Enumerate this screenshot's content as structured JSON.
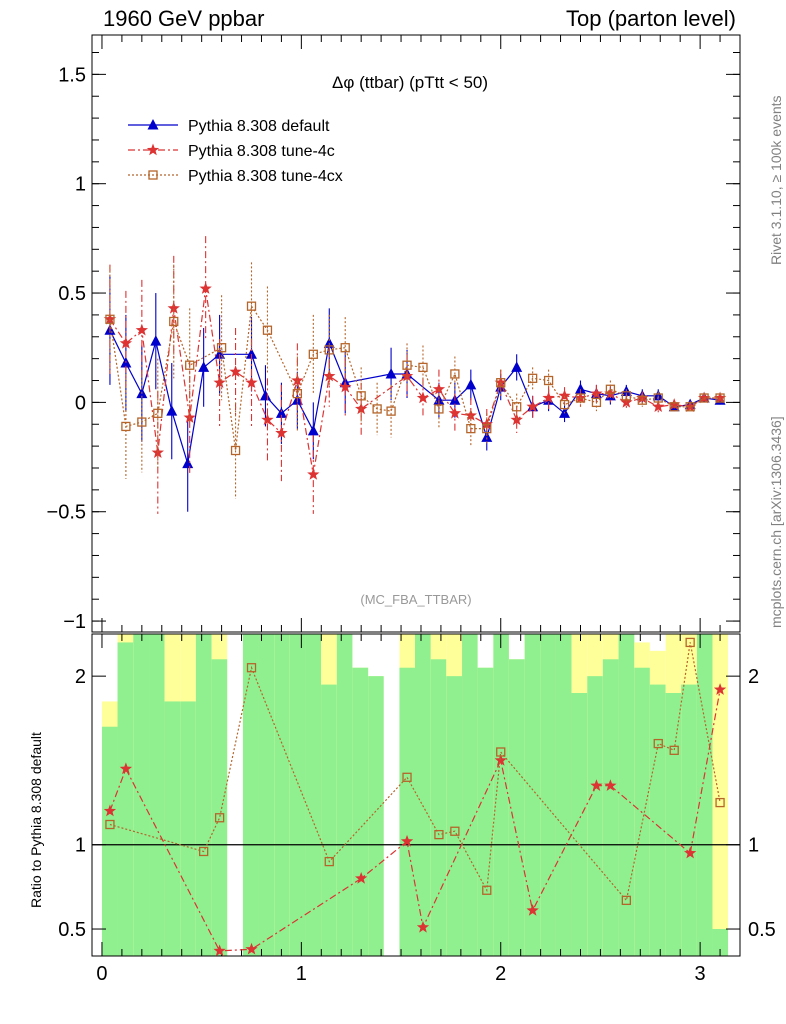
{
  "header": {
    "left": "1960 GeV ppbar",
    "right": "Top (parton level)"
  },
  "side": {
    "rivet": "Rivet 3.1.10, ≥ 100k events",
    "mcplots": "mcplots.cern.ch [arXiv:1306.3436]"
  },
  "chart_data": [
    {
      "type": "line",
      "title": "Δφ (ttbar) (pTtt < 50)",
      "watermark": "(MC_FBA_TTBAR)",
      "xlim": [
        -0.05,
        3.2
      ],
      "ylim": [
        -1.05,
        1.68
      ],
      "xticks": [
        0,
        1,
        2,
        3
      ],
      "yticks": [
        -1,
        -0.5,
        0,
        0.5,
        1,
        1.5
      ],
      "ytick_labels": [
        "−1",
        "−0.5",
        "0",
        "0.5",
        "1",
        "1.5"
      ],
      "legend_position": "top-left",
      "series": [
        {
          "name": "Pythia 8.308 default",
          "color": "#0000cc",
          "marker": "triangle",
          "line": "solid",
          "x": [
            0.04,
            0.12,
            0.2,
            0.27,
            0.35,
            0.43,
            0.51,
            0.59,
            0.75,
            0.82,
            0.9,
            0.98,
            1.06,
            1.14,
            1.22,
            1.45,
            1.53,
            1.69,
            1.77,
            1.85,
            1.93,
            2.0,
            2.08,
            2.16,
            2.24,
            2.32,
            2.4,
            2.48,
            2.55,
            2.63,
            2.71,
            2.79,
            2.87,
            2.95,
            3.02,
            3.1
          ],
          "y": [
            0.33,
            0.18,
            0.04,
            0.28,
            -0.04,
            -0.28,
            0.16,
            0.22,
            0.22,
            0.03,
            -0.05,
            0.01,
            -0.13,
            0.27,
            0.09,
            0.13,
            0.13,
            0.01,
            0.01,
            0.08,
            -0.16,
            0.07,
            0.16,
            -0.02,
            0.01,
            -0.05,
            0.06,
            0.04,
            0.03,
            0.05,
            0.03,
            0.03,
            -0.02,
            -0.01,
            0.02,
            0.01
          ],
          "err": [
            0.25,
            0.22,
            0.22,
            0.22,
            0.22,
            0.22,
            0.18,
            0.18,
            0.17,
            0.14,
            0.14,
            0.13,
            0.13,
            0.16,
            0.14,
            0.12,
            0.11,
            0.08,
            0.08,
            0.07,
            0.06,
            0.06,
            0.06,
            0.05,
            0.05,
            0.04,
            0.04,
            0.04,
            0.04,
            0.03,
            0.03,
            0.03,
            0.02,
            0.02,
            0.02,
            0.02
          ]
        },
        {
          "name": "Pythia 8.308 tune-4c",
          "color": "#dd3333",
          "marker": "star",
          "line": "dashdot",
          "x": [
            0.04,
            0.12,
            0.2,
            0.28,
            0.36,
            0.44,
            0.52,
            0.59,
            0.67,
            0.75,
            0.83,
            0.9,
            0.98,
            1.06,
            1.14,
            1.22,
            1.3,
            1.53,
            1.61,
            1.69,
            1.77,
            1.85,
            1.93,
            2.0,
            2.08,
            2.16,
            2.24,
            2.32,
            2.4,
            2.48,
            2.55,
            2.63,
            2.71,
            2.79,
            2.87,
            2.95,
            3.02,
            3.1
          ],
          "y": [
            0.38,
            0.27,
            0.33,
            -0.23,
            0.43,
            -0.07,
            0.52,
            0.09,
            0.14,
            0.09,
            -0.08,
            -0.14,
            0.1,
            -0.33,
            0.12,
            0.07,
            -0.03,
            0.12,
            0.02,
            0.06,
            -0.05,
            -0.06,
            -0.1,
            0.09,
            -0.08,
            -0.02,
            0.02,
            0.03,
            0.02,
            0.04,
            0.04,
            0.0,
            0.02,
            -0.02,
            -0.01,
            -0.02,
            0.02,
            0.02
          ],
          "err": [
            0.25,
            0.24,
            0.23,
            0.28,
            0.24,
            0.26,
            0.24,
            0.2,
            0.2,
            0.2,
            0.19,
            0.22,
            0.17,
            0.18,
            0.14,
            0.13,
            0.12,
            0.1,
            0.09,
            0.09,
            0.09,
            0.08,
            0.07,
            0.06,
            0.06,
            0.05,
            0.05,
            0.04,
            0.04,
            0.04,
            0.04,
            0.03,
            0.03,
            0.03,
            0.02,
            0.02,
            0.02,
            0.02
          ]
        },
        {
          "name": "Pythia 8.308 tune-4cx",
          "color": "#b5652a",
          "marker": "open-square",
          "line": "dotted",
          "x": [
            0.04,
            0.12,
            0.2,
            0.28,
            0.36,
            0.44,
            0.6,
            0.67,
            0.75,
            0.83,
            0.98,
            1.06,
            1.14,
            1.22,
            1.3,
            1.38,
            1.45,
            1.53,
            1.61,
            1.69,
            1.77,
            1.85,
            1.93,
            2.0,
            2.08,
            2.16,
            2.24,
            2.32,
            2.4,
            2.48,
            2.55,
            2.63,
            2.71,
            2.79,
            2.87,
            2.95,
            3.02,
            3.1
          ],
          "y": [
            0.38,
            -0.11,
            -0.09,
            -0.05,
            0.37,
            0.17,
            0.25,
            -0.22,
            0.44,
            0.33,
            0.04,
            0.22,
            0.24,
            0.25,
            0.03,
            -0.03,
            -0.04,
            0.17,
            0.16,
            -0.03,
            0.13,
            -0.12,
            -0.12,
            0.09,
            -0.02,
            0.11,
            0.1,
            -0.01,
            0.02,
            0.0,
            0.06,
            0.03,
            0.01,
            0.02,
            -0.02,
            -0.02,
            0.02,
            0.02
          ],
          "err": [
            0.24,
            0.24,
            0.23,
            0.25,
            0.26,
            0.26,
            0.24,
            0.22,
            0.2,
            0.2,
            0.17,
            0.18,
            0.16,
            0.14,
            0.13,
            0.12,
            0.12,
            0.1,
            0.1,
            0.09,
            0.08,
            0.08,
            0.07,
            0.06,
            0.06,
            0.05,
            0.05,
            0.04,
            0.04,
            0.04,
            0.04,
            0.03,
            0.03,
            0.03,
            0.02,
            0.02,
            0.02,
            0.02
          ]
        }
      ]
    },
    {
      "type": "line",
      "ylabel": "Ratio to Pythia 8.308 default",
      "xlim": [
        -0.05,
        3.2
      ],
      "ylim": [
        0.34,
        2.25
      ],
      "xticks": [
        0,
        1,
        2,
        3
      ],
      "yticks": [
        0.5,
        1,
        2
      ],
      "ytick_labels": [
        "0.5",
        "1",
        "2"
      ],
      "reference_line": 1,
      "band_colors": {
        "inner": "#90f090",
        "outer": "#ffff99"
      },
      "bands": [
        {
          "x0": 0.0,
          "x1": 0.078,
          "inner": 1.7,
          "outer": 1.85
        },
        {
          "x0": 0.078,
          "x1": 0.157,
          "inner": 2.2,
          "outer": 2.25
        },
        {
          "x0": 0.157,
          "x1": 0.236,
          "inner": 2.25,
          "outer": 2.25
        },
        {
          "x0": 0.236,
          "x1": 0.314,
          "inner": 2.25,
          "outer": 2.25
        },
        {
          "x0": 0.314,
          "x1": 0.393,
          "inner": 1.85,
          "outer": 2.25
        },
        {
          "x0": 0.393,
          "x1": 0.471,
          "inner": 1.85,
          "outer": 2.25
        },
        {
          "x0": 0.471,
          "x1": 0.55,
          "inner": 2.25,
          "outer": 2.25
        },
        {
          "x0": 0.55,
          "x1": 0.628,
          "inner": 2.1,
          "outer": 2.25
        },
        {
          "x0": 0.707,
          "x1": 0.785,
          "inner": 2.25,
          "outer": 2.25
        },
        {
          "x0": 0.785,
          "x1": 0.864,
          "inner": 2.25,
          "outer": 2.25
        },
        {
          "x0": 0.864,
          "x1": 0.942,
          "inner": 2.25,
          "outer": 2.25
        },
        {
          "x0": 0.942,
          "x1": 1.021,
          "inner": 2.25,
          "outer": 2.25
        },
        {
          "x0": 1.021,
          "x1": 1.099,
          "inner": 2.25,
          "outer": 2.25
        },
        {
          "x0": 1.099,
          "x1": 1.178,
          "inner": 1.95,
          "outer": 2.25
        },
        {
          "x0": 1.178,
          "x1": 1.256,
          "inner": 2.25,
          "outer": 2.25
        },
        {
          "x0": 1.256,
          "x1": 1.335,
          "inner": 2.05,
          "outer": 2.05
        },
        {
          "x0": 1.335,
          "x1": 1.413,
          "inner": 2.0,
          "outer": 2.0
        },
        {
          "x0": 1.492,
          "x1": 1.57,
          "inner": 2.05,
          "outer": 2.25
        },
        {
          "x0": 1.57,
          "x1": 1.649,
          "inner": 2.25,
          "outer": 2.25
        },
        {
          "x0": 1.649,
          "x1": 1.727,
          "inner": 2.1,
          "outer": 2.25
        },
        {
          "x0": 1.727,
          "x1": 1.806,
          "inner": 2.0,
          "outer": 2.25
        },
        {
          "x0": 1.806,
          "x1": 1.884,
          "inner": 2.25,
          "outer": 2.25
        },
        {
          "x0": 1.884,
          "x1": 1.963,
          "inner": 2.05,
          "outer": 2.05
        },
        {
          "x0": 1.963,
          "x1": 2.041,
          "inner": 2.25,
          "outer": 2.25
        },
        {
          "x0": 2.041,
          "x1": 2.12,
          "inner": 2.1,
          "outer": 2.1
        },
        {
          "x0": 2.12,
          "x1": 2.198,
          "inner": 2.25,
          "outer": 2.25
        },
        {
          "x0": 2.198,
          "x1": 2.277,
          "inner": 2.25,
          "outer": 2.25
        },
        {
          "x0": 2.277,
          "x1": 2.355,
          "inner": 2.25,
          "outer": 2.25
        },
        {
          "x0": 2.355,
          "x1": 2.434,
          "inner": 1.9,
          "outer": 2.25
        },
        {
          "x0": 2.434,
          "x1": 2.512,
          "inner": 2.0,
          "outer": 2.25
        },
        {
          "x0": 2.512,
          "x1": 2.591,
          "inner": 2.1,
          "outer": 2.25
        },
        {
          "x0": 2.591,
          "x1": 2.67,
          "inner": 2.25,
          "outer": 2.25
        },
        {
          "x0": 2.67,
          "x1": 2.748,
          "inner": 2.05,
          "outer": 2.2
        },
        {
          "x0": 2.748,
          "x1": 2.827,
          "inner": 1.95,
          "outer": 2.15
        },
        {
          "x0": 2.827,
          "x1": 2.905,
          "inner": 1.9,
          "outer": 2.25
        },
        {
          "x0": 2.905,
          "x1": 2.984,
          "inner": 1.95,
          "outer": 2.25
        },
        {
          "x0": 2.984,
          "x1": 3.062,
          "inner": 2.25,
          "outer": 2.25
        },
        {
          "x0": 3.062,
          "x1": 3.14,
          "inner": 0.5,
          "outer": 2.25
        }
      ],
      "series": [
        {
          "name": "Pythia 8.308 tune-4c",
          "color": "#dd3333",
          "marker": "star",
          "line": "dashdot",
          "x": [
            0.04,
            0.12,
            0.59,
            0.75,
            1.3,
            1.53,
            1.61,
            2.0,
            2.16,
            2.48,
            2.55,
            2.95,
            3.1
          ],
          "y": [
            1.2,
            1.45,
            0.37,
            0.38,
            0.8,
            1.02,
            0.51,
            1.5,
            0.61,
            1.35,
            1.35,
            0.95,
            1.92
          ]
        },
        {
          "name": "Pythia 8.308 tune-4cx",
          "color": "#b5652a",
          "marker": "open-square",
          "line": "dotted",
          "x": [
            0.04,
            0.51,
            0.59,
            0.75,
            1.14,
            1.53,
            1.69,
            1.77,
            1.93,
            2.0,
            2.63,
            2.79,
            2.87,
            2.95,
            3.1
          ],
          "y": [
            1.12,
            0.96,
            1.16,
            2.05,
            0.9,
            1.4,
            1.06,
            1.08,
            0.73,
            1.55,
            0.67,
            1.6,
            1.56,
            2.2,
            1.25
          ]
        }
      ]
    }
  ]
}
